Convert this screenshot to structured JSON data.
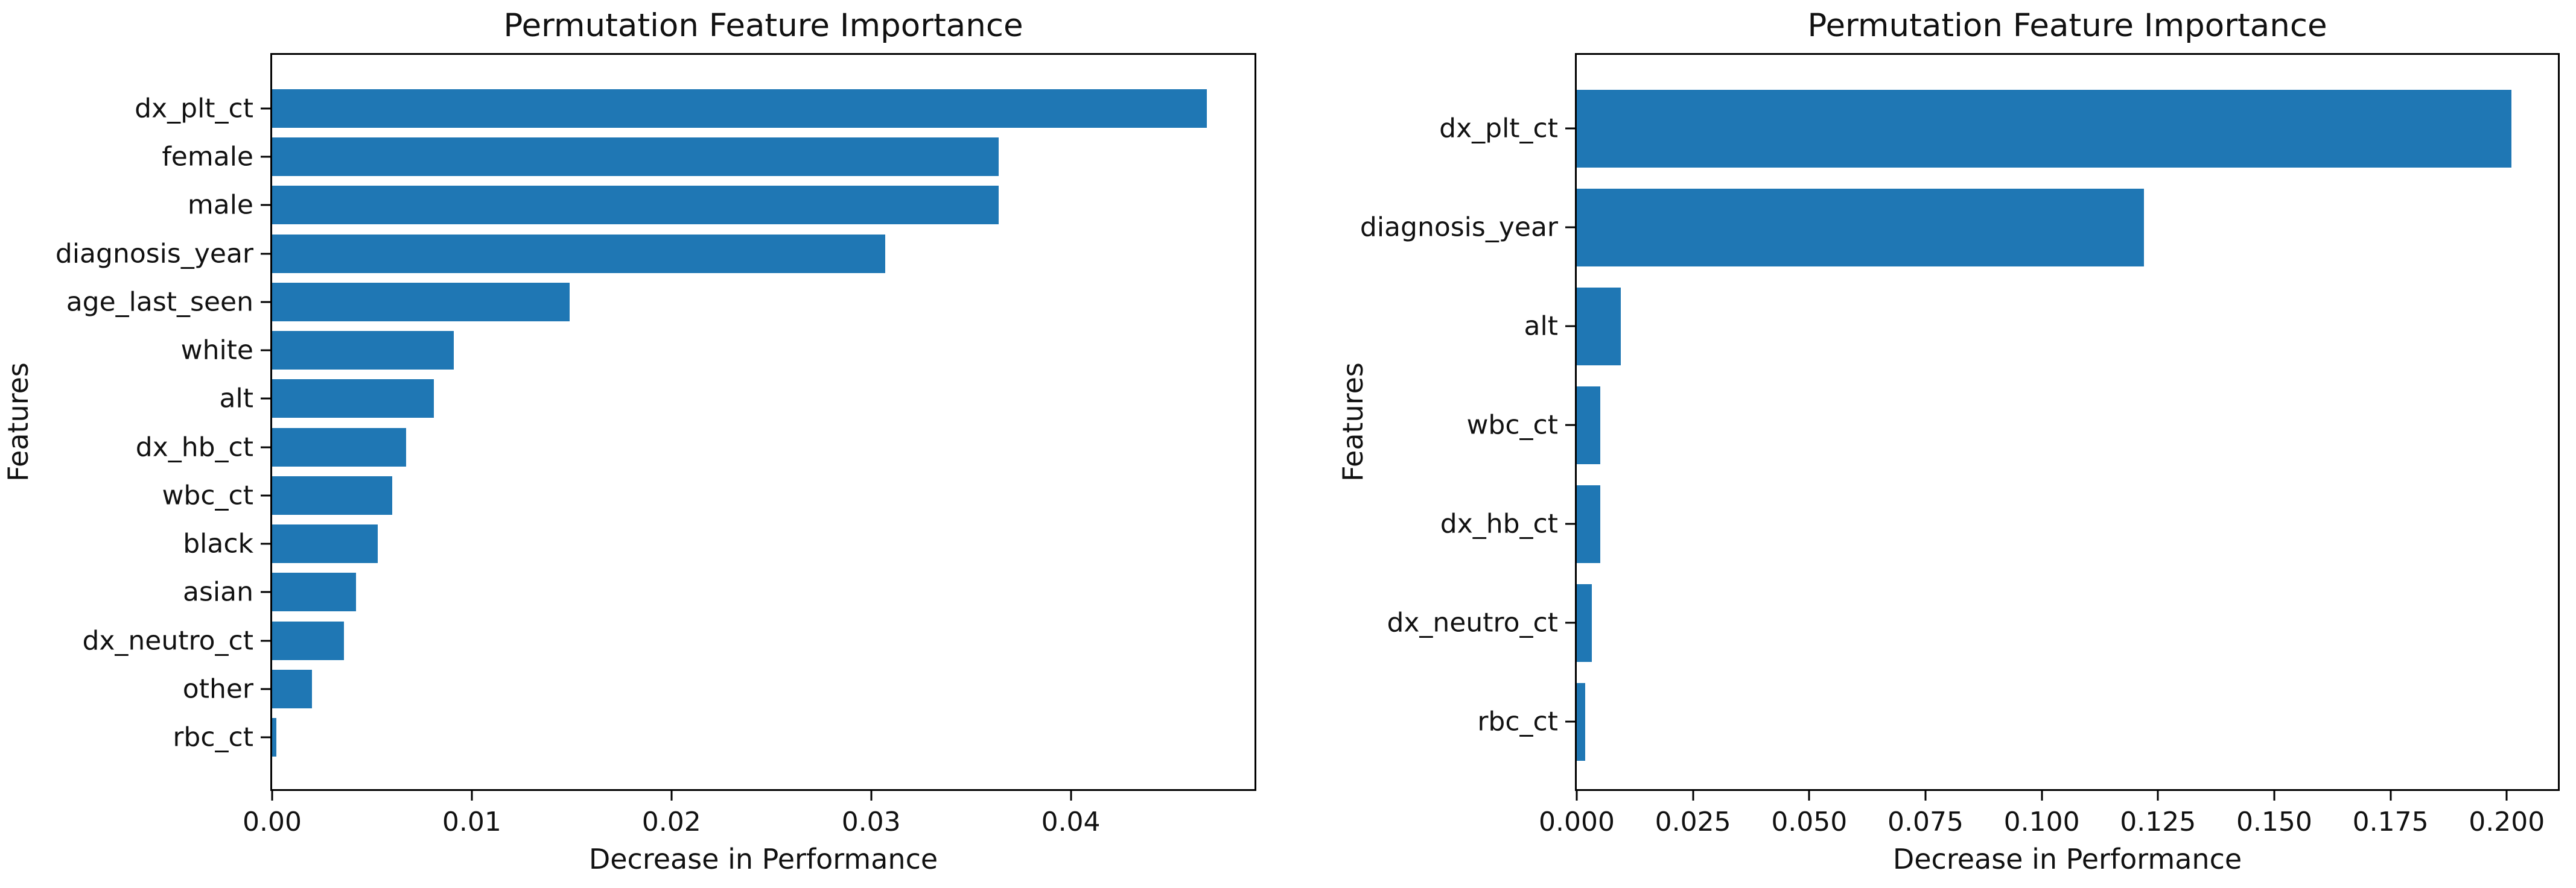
{
  "figure": {
    "background": "#ffffff",
    "bar_color": "#1f77b4",
    "axis_color": "#000000",
    "text_color": "#111111"
  },
  "chart_data": [
    {
      "type": "bar",
      "orientation": "horizontal",
      "title": "Permutation Feature Importance",
      "xlabel": "Decrease in Performance",
      "ylabel": "Features",
      "legend": null,
      "grid": false,
      "categories": [
        "dx_plt_ct",
        "female",
        "male",
        "diagnosis_year",
        "age_last_seen",
        "white",
        "alt",
        "dx_hb_ct",
        "wbc_ct",
        "black",
        "asian",
        "dx_neutro_ct",
        "other",
        "rbc_ct"
      ],
      "values": [
        0.0468,
        0.0364,
        0.0364,
        0.0307,
        0.0149,
        0.0091,
        0.0081,
        0.0067,
        0.006,
        0.0053,
        0.0042,
        0.0036,
        0.002,
        0.0002
      ],
      "xlim": [
        0,
        0.0492
      ],
      "xtick_values": [
        0.0,
        0.01,
        0.02,
        0.03,
        0.04
      ],
      "xtick_labels": [
        "0.00",
        "0.01",
        "0.02",
        "0.03",
        "0.04"
      ],
      "bar_color": "#1f77b4"
    },
    {
      "type": "bar",
      "orientation": "horizontal",
      "title": "Permutation Feature Importance",
      "xlabel": "Decrease in Performance",
      "ylabel": "Features",
      "legend": null,
      "grid": false,
      "categories": [
        "dx_plt_ct",
        "diagnosis_year",
        "alt",
        "wbc_ct",
        "dx_hb_ct",
        "dx_neutro_ct",
        "rbc_ct"
      ],
      "values": [
        0.201,
        0.122,
        0.0095,
        0.005,
        0.005,
        0.0033,
        0.0018
      ],
      "xlim": [
        0,
        0.211
      ],
      "xtick_values": [
        0.0,
        0.025,
        0.05,
        0.075,
        0.1,
        0.125,
        0.15,
        0.175,
        0.2
      ],
      "xtick_labels": [
        "0.000",
        "0.025",
        "0.050",
        "0.075",
        "0.100",
        "0.125",
        "0.150",
        "0.175",
        "0.200"
      ],
      "bar_color": "#1f77b4"
    }
  ]
}
